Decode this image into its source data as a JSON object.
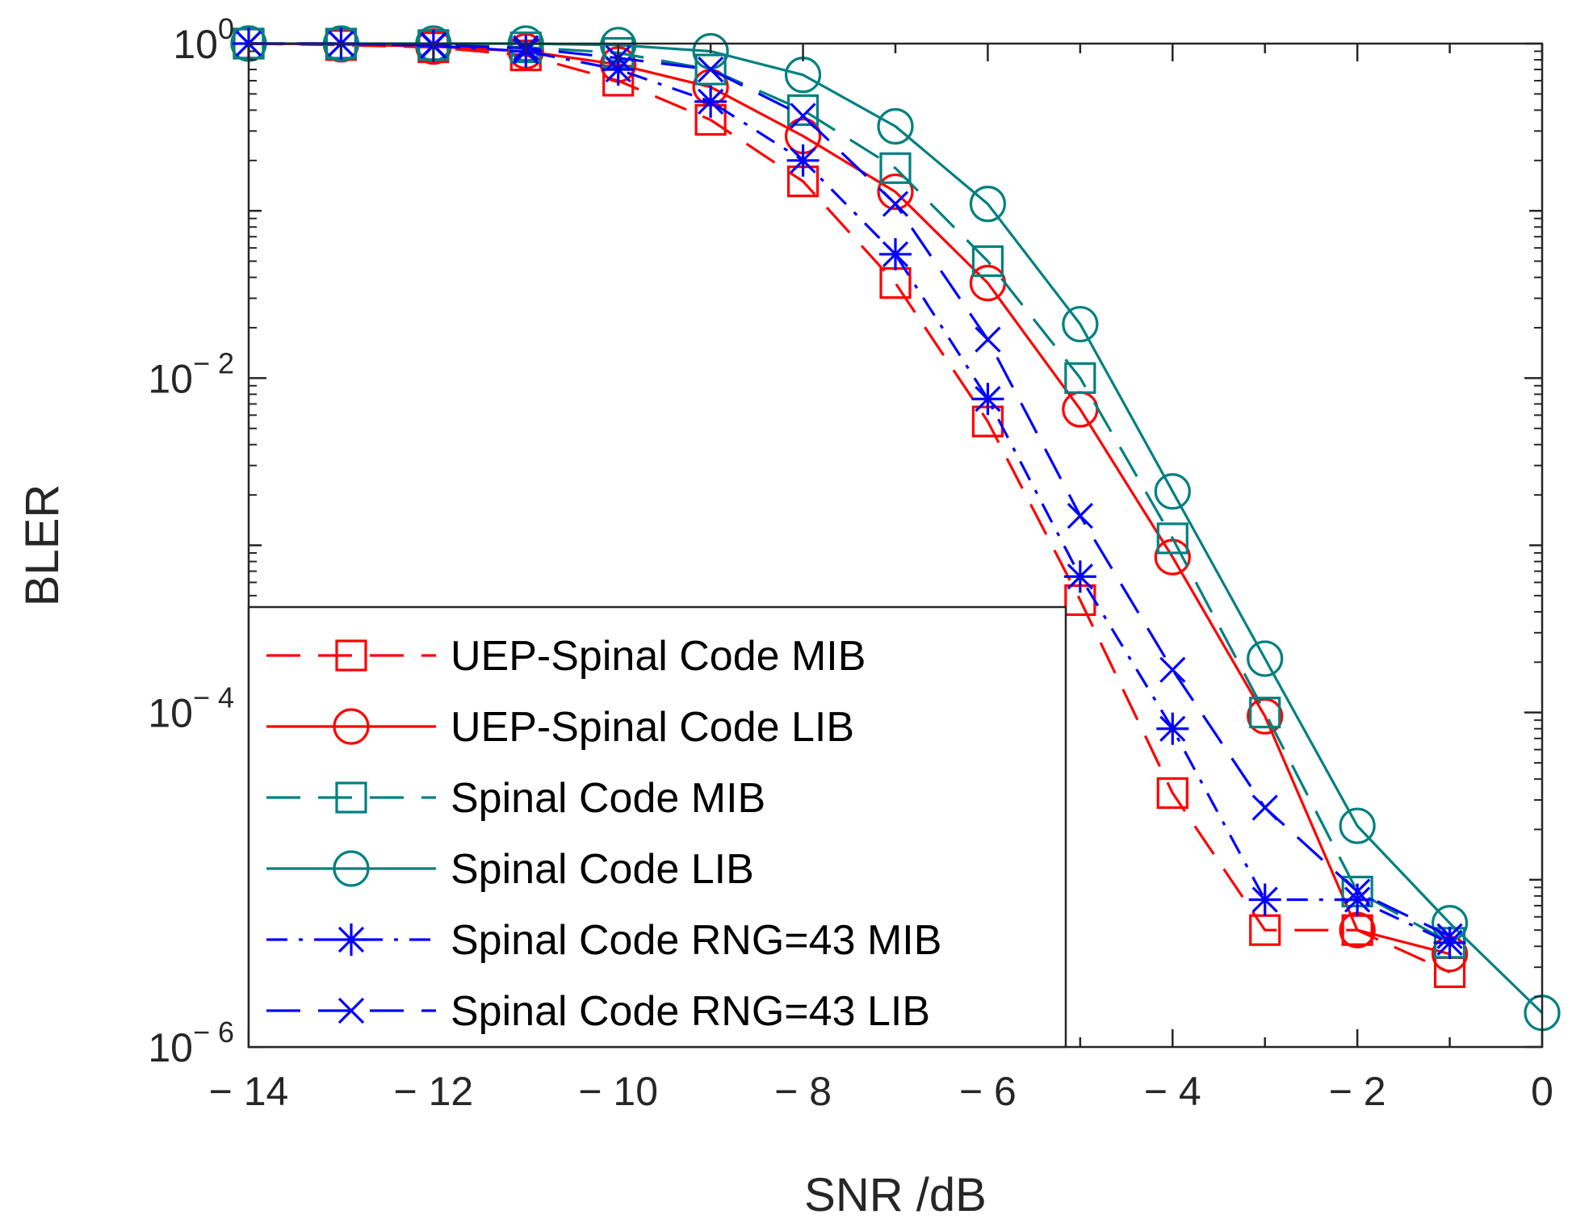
{
  "chart_data": {
    "type": "line",
    "xlabel": "SNR /dB",
    "ylabel": "BLER",
    "xlim": [
      -14,
      0
    ],
    "ylim": [
      1e-06,
      1
    ],
    "yscale": "log",
    "grid": false,
    "legend_position": "bottom-left",
    "x_ticks": [
      -14,
      -12,
      -10,
      -8,
      -6,
      -4,
      -2,
      0
    ],
    "x_tick_labels": [
      "− 14",
      "− 12",
      "− 10",
      "− 8",
      "− 6",
      "− 4",
      "− 2",
      "0"
    ],
    "y_ticks": [
      {
        "value": 1,
        "base": "10",
        "exp": "0"
      },
      {
        "value": 0.01,
        "base": "10",
        "exp": "− 2"
      },
      {
        "value": 0.0001,
        "base": "10",
        "exp": "− 4"
      },
      {
        "value": 1e-06,
        "base": "10",
        "exp": "− 6"
      }
    ],
    "series": [
      {
        "name": "UEP-Spinal Code MIB",
        "color": "#ff0000",
        "dash": "long-dash",
        "marker": "square",
        "x": [
          -14,
          -13,
          -12,
          -11,
          -10,
          -9,
          -8,
          -7,
          -6,
          -5,
          -4,
          -3,
          -2,
          -1
        ],
        "y": [
          1.0,
          0.98,
          0.95,
          0.85,
          0.6,
          0.35,
          0.15,
          0.037,
          0.0055,
          0.00047,
          3.3e-05,
          5e-06,
          5e-06,
          2.8e-06
        ]
      },
      {
        "name": "UEP-Spinal Code LIB",
        "color": "#ff0000",
        "dash": "solid",
        "marker": "circle",
        "x": [
          -14,
          -13,
          -12,
          -11,
          -10,
          -9,
          -8,
          -7,
          -6,
          -5,
          -4,
          -3,
          -2,
          -1
        ],
        "y": [
          1.0,
          0.99,
          0.96,
          0.9,
          0.75,
          0.55,
          0.28,
          0.13,
          0.037,
          0.0065,
          0.00085,
          9.5e-05,
          5e-06,
          3.6e-06
        ]
      },
      {
        "name": "Spinal Code MIB",
        "color": "#008080",
        "dash": "long-dash",
        "marker": "square",
        "x": [
          -14,
          -13,
          -12,
          -11,
          -10,
          -9,
          -8,
          -7,
          -6,
          -5,
          -4,
          -3,
          -2,
          -1
        ],
        "y": [
          1.0,
          1.0,
          0.98,
          0.95,
          0.88,
          0.7,
          0.4,
          0.18,
          0.05,
          0.01,
          0.0011,
          0.0001,
          8.5e-06,
          4.2e-06
        ]
      },
      {
        "name": "Spinal Code LIB",
        "color": "#008080",
        "dash": "solid",
        "marker": "circle",
        "x": [
          -14,
          -13,
          -12,
          -11,
          -10,
          -9,
          -8,
          -7,
          -6,
          -5,
          -4,
          -3,
          -2,
          -1,
          0
        ],
        "y": [
          1.0,
          1.0,
          1.0,
          1.0,
          0.98,
          0.9,
          0.65,
          0.32,
          0.11,
          0.021,
          0.0021,
          0.00021,
          2.1e-05,
          5.5e-06,
          1.6e-06
        ]
      },
      {
        "name": "Spinal Code RNG=43 MIB",
        "color": "#0000ff",
        "dash": "dash-dot",
        "marker": "asterisk",
        "x": [
          -14,
          -13,
          -12,
          -11,
          -10,
          -9,
          -8,
          -7,
          -6,
          -5,
          -4,
          -3,
          -2,
          -1
        ],
        "y": [
          1.0,
          1.0,
          0.97,
          0.9,
          0.7,
          0.45,
          0.2,
          0.055,
          0.0075,
          0.00065,
          8e-05,
          7.6e-06,
          7.6e-06,
          4.2e-06
        ]
      },
      {
        "name": "Spinal Code RNG=43 LIB",
        "color": "#0000ff",
        "dash": "long-dash",
        "marker": "x",
        "x": [
          -14,
          -13,
          -12,
          -11,
          -10,
          -9,
          -8,
          -7,
          -6,
          -5,
          -4,
          -3,
          -2,
          -1
        ],
        "y": [
          1.0,
          1.0,
          0.98,
          0.94,
          0.82,
          0.7,
          0.37,
          0.11,
          0.017,
          0.0015,
          0.00018,
          2.7e-05,
          8.5e-06,
          4.6e-06
        ]
      }
    ]
  }
}
